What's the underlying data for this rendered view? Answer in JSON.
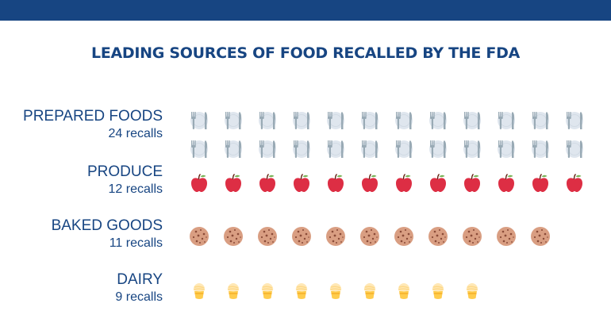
{
  "header": {
    "bar_color": "#174582"
  },
  "title": "LEADING SOURCES OF FOOD RECALLED BY THE FDA",
  "rows": [
    {
      "category": "PREPARED FOODS",
      "count_label": "24 recalls",
      "count": 24,
      "icon": "plate-fork-knife-icon"
    },
    {
      "category": "PRODUCE",
      "count_label": "12 recalls",
      "count": 12,
      "icon": "apple-icon"
    },
    {
      "category": "BAKED GOODS",
      "count_label": "11 recalls",
      "count": 11,
      "icon": "cookie-icon"
    },
    {
      "category": "DAIRY",
      "count_label": "9 recalls",
      "count": 9,
      "icon": "ice-cream-icon"
    }
  ],
  "colors": {
    "text": "#174582",
    "apple": "#dd2e44",
    "cookie": "#d99e82",
    "ice_cream": "#ffcc4d",
    "plate": "#dfe6ee",
    "cutlery": "#99aab5"
  },
  "chart_data": {
    "type": "bar",
    "subtype": "pictogram",
    "title": "LEADING SOURCES OF FOOD RECALLED BY THE FDA",
    "categories": [
      "PREPARED FOODS",
      "PRODUCE",
      "BAKED GOODS",
      "DAIRY"
    ],
    "values": [
      24,
      12,
      11,
      9
    ],
    "unit": "recalls",
    "icons_per_row": 12,
    "xlabel": "",
    "ylabel": "",
    "legend": "none"
  }
}
